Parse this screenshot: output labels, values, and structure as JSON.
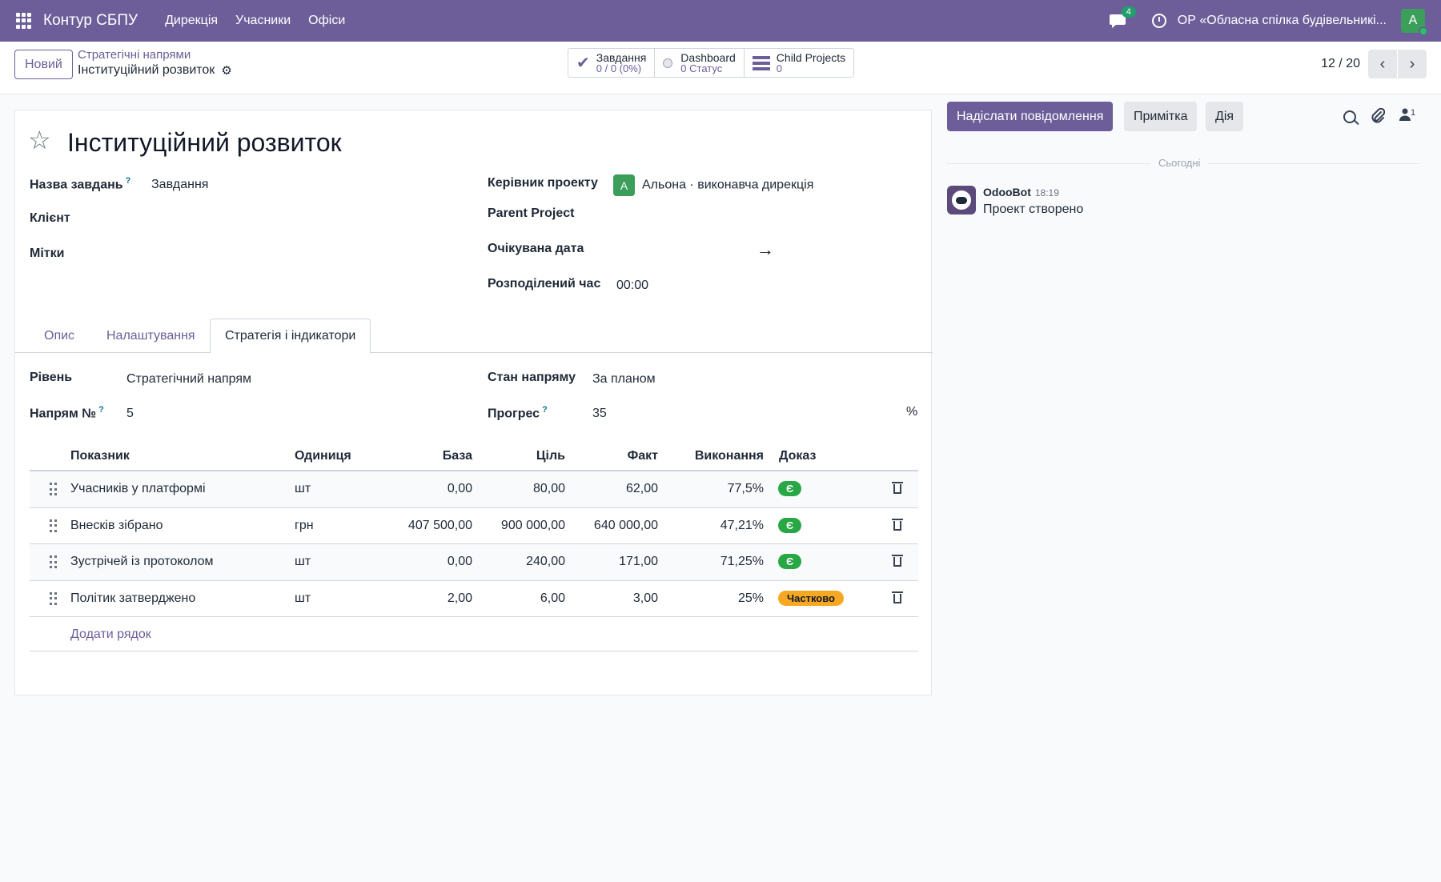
{
  "navbar": {
    "brand": "Контур СБПУ",
    "menu": [
      "Дирекція",
      "Учасники",
      "Офіси"
    ],
    "chat_badge": "4",
    "company": "ОР «Обласна спілка будівельникі...",
    "user_initial": "А"
  },
  "control": {
    "new_button": "Новий",
    "breadcrumb_parent": "Стратегічні напрями",
    "breadcrumb_current": "Інституційний розвиток",
    "stats": {
      "tasks_label": "Завдання",
      "tasks_value": "0 / 0 (0%)",
      "dashboard_label": "Dashboard",
      "dashboard_value": "0 Статус",
      "child_label": "Child Projects",
      "child_value": "0"
    },
    "pager": "12 / 20"
  },
  "form": {
    "title": "Інституційний розвиток",
    "labels": {
      "task_name": "Назва завдань",
      "client": "Клієнт",
      "tags": "Мітки",
      "manager": "Керівник проекту",
      "parent": "Parent Project",
      "expected_date": "Очікувана дата",
      "allocated": "Розподілений час",
      "level": "Рівень",
      "direction_no": "Напрям №",
      "direction_state": "Стан напряму",
      "progress": "Прогрес"
    },
    "values": {
      "task_name": "Завдання",
      "manager_initial": "А",
      "manager": "Альона · виконавча дирекція",
      "allocated": "00:00",
      "level": "Стратегічний напрям",
      "direction_no": "5",
      "direction_state": "За планом",
      "progress": "35",
      "progress_unit": "%"
    },
    "help_mark": "?",
    "tabs": [
      "Опис",
      "Налаштування",
      "Стратегія і індикатори"
    ],
    "active_tab": 2
  },
  "indicators": {
    "headers": [
      "Показник",
      "Одиниця",
      "База",
      "Ціль",
      "Факт",
      "Виконання",
      "Доказ"
    ],
    "rows": [
      {
        "name": "Учасників у платформі",
        "unit": "шт",
        "base": "0,00",
        "target": "80,00",
        "fact": "62,00",
        "done": "77,5%",
        "proof": "Є"
      },
      {
        "name": "Внесків зібрано",
        "unit": "грн",
        "base": "407 500,00",
        "target": "900 000,00",
        "fact": "640 000,00",
        "done": "47,21%",
        "proof": "Є"
      },
      {
        "name": "Зустрічей із протоколом",
        "unit": "шт",
        "base": "0,00",
        "target": "240,00",
        "fact": "171,00",
        "done": "71,25%",
        "proof": "Є"
      },
      {
        "name": "Політик затверджено",
        "unit": "шт",
        "base": "2,00",
        "target": "6,00",
        "fact": "3,00",
        "done": "25%",
        "proof": "Частково"
      }
    ],
    "add_row": "Додати рядок"
  },
  "chatter": {
    "send_message": "Надіслати повідомлення",
    "note": "Примітка",
    "action": "Дія",
    "followers_count": "1",
    "date_divider": "Сьогодні",
    "author": "OdooBot",
    "time": "18:19",
    "message": "Проект створено"
  },
  "colors": {
    "brand": "#6d5e99",
    "success": "#28a745",
    "warning": "#f7a823"
  }
}
